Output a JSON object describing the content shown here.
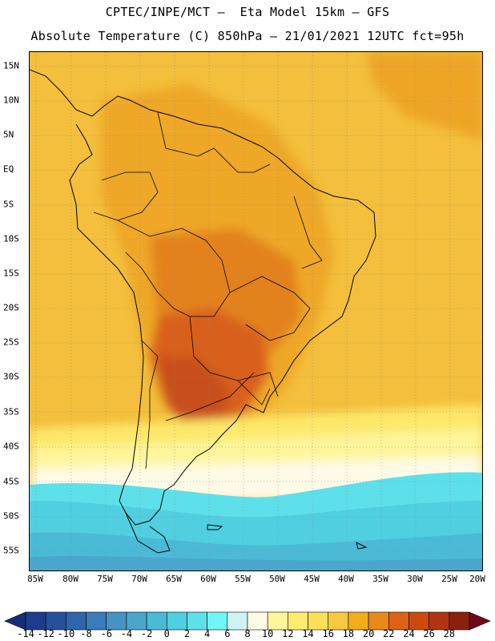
{
  "header": {
    "line1": "CPTEC/INPE/MCT –  Eta Model 15km – GFS",
    "line2": "Absolute Temperature (C) 850hPa – 21/01/2021 12UTC fct=95h"
  },
  "map": {
    "lat_labels": [
      "15N",
      "10N",
      "5N",
      "EQ",
      "5S",
      "10S",
      "15S",
      "20S",
      "25S",
      "30S",
      "35S",
      "40S",
      "45S",
      "50S",
      "55S"
    ],
    "lon_labels": [
      "85W",
      "80W",
      "75W",
      "70W",
      "65W",
      "60W",
      "55W",
      "50W",
      "45W",
      "40W",
      "35W",
      "30W",
      "25W",
      "20W"
    ],
    "extent": {
      "lon_min": -85,
      "lon_max": -20,
      "lat_min": -57.5,
      "lat_max": 16.5
    },
    "grid": "dotted"
  },
  "colorbar": {
    "labels": [
      "-14",
      "-12",
      "-10",
      "-8",
      "-6",
      "-4",
      "-2",
      "0",
      "2",
      "4",
      "6",
      "8",
      "10",
      "12",
      "14",
      "16",
      "18",
      "20",
      "22",
      "24",
      "26",
      "28"
    ],
    "colors": [
      "#1e3c8c",
      "#25509b",
      "#2e65ab",
      "#3a7cbb",
      "#4693c4",
      "#4aa6cc",
      "#4bbad6",
      "#4fcfe0",
      "#5ee0ea",
      "#70f6f6",
      "#cdf3f5",
      "#fffae6",
      "#fff59b",
      "#ffec6e",
      "#fde05a",
      "#f6c940",
      "#f3ad1a",
      "#e88a1a",
      "#dd6214",
      "#cc4a10",
      "#b23410",
      "#8a2010"
    ],
    "under_color": "#162e78",
    "over_color": "#6e0a18"
  }
}
